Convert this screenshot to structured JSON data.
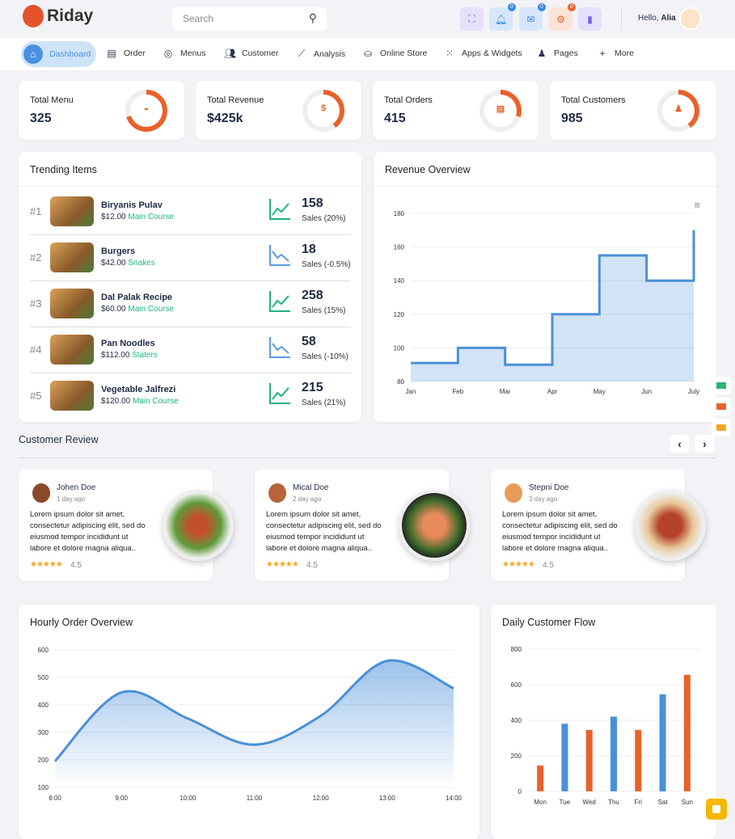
{
  "brand": {
    "name": "Riday"
  },
  "search": {
    "placeholder": "Search"
  },
  "header": {
    "badges": [
      "0",
      "0",
      "0"
    ],
    "greeting": "Hello,",
    "user": "Alia",
    "icons": [
      "fullscreen-icon",
      "bell-icon",
      "mail-icon",
      "gear-icon",
      "panel-icon"
    ]
  },
  "nav": [
    {
      "label": "Dashboard",
      "icon": "home-icon",
      "active": true
    },
    {
      "label": "Order",
      "icon": "clipboard-icon"
    },
    {
      "label": "Menus",
      "icon": "dish-icon"
    },
    {
      "label": "Customer",
      "icon": "users-icon"
    },
    {
      "label": "Analysis",
      "icon": "chart-icon"
    },
    {
      "label": "Online Store",
      "icon": "basket-icon"
    },
    {
      "label": "Apps & Widgets",
      "icon": "grid-icon"
    },
    {
      "label": "Pages",
      "icon": "user-icon"
    },
    {
      "label": "More",
      "icon": "plus-icon"
    }
  ],
  "stats": [
    {
      "label": "Total Menu",
      "value": "325",
      "percent": 70
    },
    {
      "label": "Total Revenue",
      "value": "$425k",
      "percent": 40,
      "symbol": "$"
    },
    {
      "label": "Total Orders",
      "value": "415",
      "percent": 30
    },
    {
      "label": "Total Customers",
      "value": "985",
      "percent": 40
    }
  ],
  "trending": {
    "title": "Trending Items",
    "items": [
      {
        "rank": "#1",
        "name": "Biryanis Pulav",
        "price": "$12.00",
        "category": "Main Course",
        "sales": "158",
        "change": "Sales (20%)",
        "up": true
      },
      {
        "rank": "#2",
        "name": "Burgers",
        "price": "$42.00",
        "category": "Snakes",
        "sales": "18",
        "change": "Sales (-0.5%)",
        "up": false
      },
      {
        "rank": "#3",
        "name": "Dal Palak Recipe",
        "price": "$60.00",
        "category": "Main Course",
        "sales": "258",
        "change": "Sales (15%)",
        "up": true
      },
      {
        "rank": "#4",
        "name": "Pan Noodles",
        "price": "$112.00",
        "category": "Staters",
        "sales": "58",
        "change": "Sales (-10%)",
        "up": false
      },
      {
        "rank": "#5",
        "name": "Vegetable Jalfrezi",
        "price": "$120.00",
        "category": "Main Course",
        "sales": "215",
        "change": "Sales (21%)",
        "up": true
      }
    ]
  },
  "reviews": {
    "title": "Customer Review",
    "items": [
      {
        "name": "Johen Doe",
        "ago": "1 day ago",
        "text": "Lorem ipsum dolor sit amet, consectetur adipiscing elit, sed do eiusmod tempor incididunt ut labore et dolore magna aliqua..",
        "stars": "★★★★★",
        "rating": "4.5"
      },
      {
        "name": "Mical Doe",
        "ago": "2 day ago",
        "text": "Lorem ipsum dolor sit amet, consectetur adipiscing elit, sed do eiusmod tempor incididunt ut labore et dolore magna aliqua..",
        "stars": "★★★★★",
        "rating": "4.5"
      },
      {
        "name": "Stepni Doe",
        "ago": "3 day ago",
        "text": "Lorem ipsum dolor sit amet, consectetur adipiscing elit, sed do eiusmod tempor incididunt ut labore et dolore magna aliqua..",
        "stars": "★★★★★",
        "rating": "4.5"
      }
    ]
  },
  "chart_data": [
    {
      "title": "Revenue Overview",
      "type": "area",
      "step": true,
      "categories": [
        "Jan",
        "Feb",
        "Mar",
        "Apr",
        "May",
        "Jun",
        "July"
      ],
      "values": [
        91,
        100,
        90,
        120,
        155,
        140,
        170
      ],
      "ylim": [
        80,
        180
      ],
      "yticks": [
        80,
        100,
        120,
        140,
        160,
        180
      ],
      "color": "#4a90d9",
      "grid": true
    },
    {
      "title": "Hourly Order Overview",
      "type": "area",
      "categories": [
        "8:00",
        "9:00",
        "10:00",
        "11:00",
        "12:00",
        "13:00",
        "14:00"
      ],
      "values": [
        195,
        445,
        350,
        255,
        360,
        560,
        460
      ],
      "ylim": [
        100,
        600
      ],
      "yticks": [
        100,
        200,
        300,
        400,
        500,
        600
      ],
      "color": "#4a90d9",
      "grid": true
    },
    {
      "title": "Daily Customer Flow",
      "type": "bar",
      "categories": [
        "Mon",
        "Tue",
        "Wed",
        "Thu",
        "Fri",
        "Sat",
        "Sun"
      ],
      "values": [
        145,
        380,
        345,
        420,
        345,
        545,
        655
      ],
      "colors": [
        "#e8622a",
        "#4a90d9",
        "#e8622a",
        "#4a90d9",
        "#e8622a",
        "#4a90d9",
        "#e8622a"
      ],
      "ylim": [
        0,
        800
      ],
      "yticks": [
        0,
        200,
        400,
        600,
        800
      ],
      "grid": true
    }
  ]
}
